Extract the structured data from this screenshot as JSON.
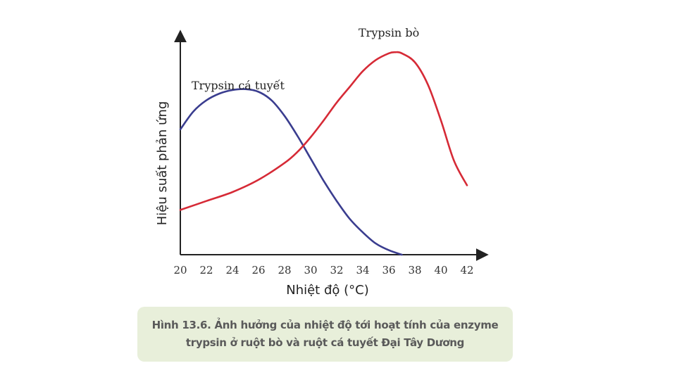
{
  "chart_data": {
    "type": "line",
    "xlabel": "Nhiệt độ (°C)",
    "ylabel": "Hiệu suất phản ứng",
    "xticks": [
      20,
      22,
      24,
      26,
      28,
      30,
      32,
      34,
      36,
      38,
      40,
      42
    ],
    "xlim": [
      20,
      43.5
    ],
    "ylim": [
      0,
      1
    ],
    "grid": false,
    "series": [
      {
        "name": "Trypsin cá tuyết",
        "color": "#3a3d8f",
        "x": [
          20,
          21,
          22,
          23,
          24,
          25,
          26,
          27,
          28,
          29,
          30,
          31,
          32,
          33,
          34,
          35,
          36,
          37
        ],
        "y": [
          0.56,
          0.64,
          0.69,
          0.72,
          0.736,
          0.74,
          0.728,
          0.69,
          0.62,
          0.53,
          0.43,
          0.33,
          0.24,
          0.16,
          0.1,
          0.05,
          0.02,
          0.0
        ]
      },
      {
        "name": "Trypsin bò",
        "color": "#d62a36",
        "x": [
          20,
          22,
          24,
          26,
          28,
          29,
          30,
          31,
          32,
          33,
          34,
          35,
          36,
          36.5,
          37,
          38,
          39,
          40,
          41,
          42
        ],
        "y": [
          0.2,
          0.24,
          0.28,
          0.335,
          0.41,
          0.46,
          0.525,
          0.6,
          0.68,
          0.75,
          0.82,
          0.87,
          0.9,
          0.905,
          0.9,
          0.86,
          0.76,
          0.6,
          0.42,
          0.31
        ]
      }
    ]
  },
  "caption": {
    "line1": "Hình 13.6. Ảnh hưởng của nhiệt độ tới hoạt tính của enzyme",
    "line2": "trypsin ở ruột bò và ruột cá tuyết Đại Tây Dương"
  }
}
